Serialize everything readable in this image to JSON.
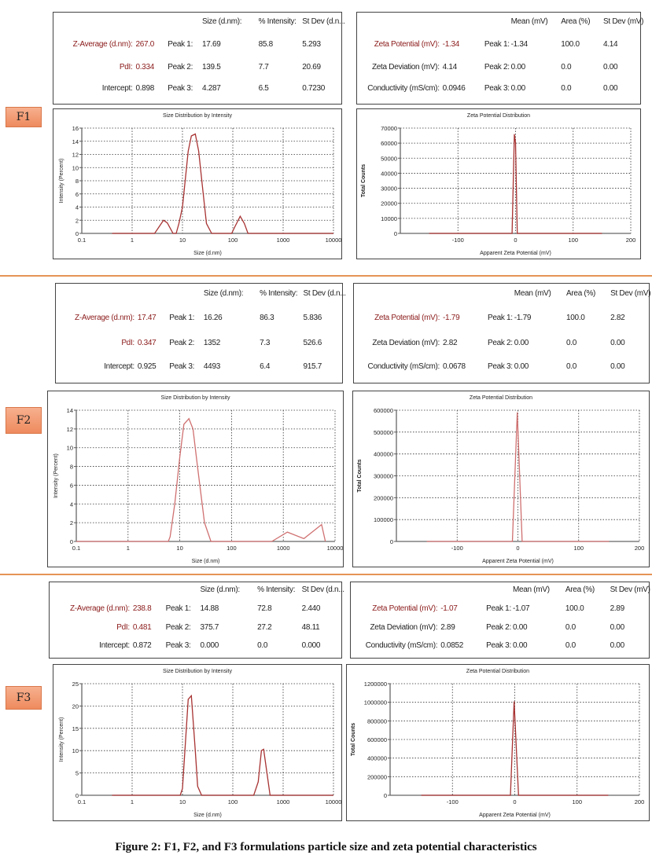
{
  "caption": {
    "figure": "Figure 2",
    "text": ": F1, F2, and F3 formulations particle size and zeta potential characteristics"
  },
  "formulations": [
    {
      "label": "F1",
      "size_table": {
        "headers": [
          "Size (d.nm):",
          "% Intensity:",
          "St Dev (d.n..."
        ],
        "rows": [
          {
            "label": "Z-Average (d.nm):",
            "value": "267.0",
            "peak": "Peak 1:",
            "cols": [
              "17.69",
              "85.8",
              "5.293"
            ]
          },
          {
            "label": "PdI:",
            "value": "0.334",
            "peak": "Peak 2:",
            "cols": [
              "139.5",
              "7.7",
              "20.69"
            ]
          },
          {
            "label": "Intercept:",
            "value": "0.898",
            "peak": "Peak 3:",
            "cols": [
              "4.287",
              "6.5",
              "0.7230"
            ]
          }
        ]
      },
      "zeta_table": {
        "headers": [
          "Mean (mV)",
          "Area (%)",
          "St Dev (mV)"
        ],
        "rows": [
          {
            "label": "Zeta Potential (mV):",
            "value": "-1.34",
            "peak": "Peak 1:",
            "cols": [
              "-1.34",
              "100.0",
              "4.14"
            ]
          },
          {
            "label": "Zeta Deviation (mV):",
            "value": "4.14",
            "peak": "Peak 2:",
            "cols": [
              "0.00",
              "0.0",
              "0.00"
            ]
          },
          {
            "label": "Conductivity (mS/cm):",
            "value": "0.0946",
            "peak": "Peak 3:",
            "cols": [
              "0.00",
              "0.0",
              "0.00"
            ]
          }
        ]
      }
    },
    {
      "label": "F2",
      "size_table": {
        "headers": [
          "Size (d.nm):",
          "% Intensity:",
          "St Dev (d.n..."
        ],
        "rows": [
          {
            "label": "Z-Average (d.nm):",
            "value": "17.47",
            "peak": "Peak 1:",
            "cols": [
              "16.26",
              "86.3",
              "5.836"
            ]
          },
          {
            "label": "PdI:",
            "value": "0.347",
            "peak": "Peak 2:",
            "cols": [
              "1352",
              "7.3",
              "526.6"
            ]
          },
          {
            "label": "Intercept:",
            "value": "0.925",
            "peak": "Peak 3:",
            "cols": [
              "4493",
              "6.4",
              "915.7"
            ]
          }
        ]
      },
      "zeta_table": {
        "headers": [
          "Mean (mV)",
          "Area (%)",
          "St Dev (mV)"
        ],
        "rows": [
          {
            "label": "Zeta Potential (mV):",
            "value": "-1.79",
            "peak": "Peak 1:",
            "cols": [
              "-1.79",
              "100.0",
              "2.82"
            ]
          },
          {
            "label": "Zeta Deviation (mV):",
            "value": "2.82",
            "peak": "Peak 2:",
            "cols": [
              "0.00",
              "0.0",
              "0.00"
            ]
          },
          {
            "label": "Conductivity (mS/cm):",
            "value": "0.0678",
            "peak": "Peak 3:",
            "cols": [
              "0.00",
              "0.0",
              "0.00"
            ]
          }
        ]
      }
    },
    {
      "label": "F3",
      "size_table": {
        "headers": [
          "Size (d.nm):",
          "% Intensity:",
          "St Dev (d.n..."
        ],
        "rows": [
          {
            "label": "Z-Average (d.nm):",
            "value": "238.8",
            "peak": "Peak 1:",
            "cols": [
              "14.88",
              "72.8",
              "2.440"
            ]
          },
          {
            "label": "PdI:",
            "value": "0.481",
            "peak": "Peak 2:",
            "cols": [
              "375.7",
              "27.2",
              "48.11"
            ]
          },
          {
            "label": "Intercept:",
            "value": "0.872",
            "peak": "Peak 3:",
            "cols": [
              "0.000",
              "0.0",
              "0.000"
            ]
          }
        ]
      },
      "zeta_table": {
        "headers": [
          "Mean (mV)",
          "Area (%)",
          "St Dev (mV)"
        ],
        "rows": [
          {
            "label": "Zeta Potential (mV):",
            "value": "-1.07",
            "peak": "Peak 1:",
            "cols": [
              "-1.07",
              "100.0",
              "2.89"
            ]
          },
          {
            "label": "Zeta Deviation (mV):",
            "value": "2.89",
            "peak": "Peak 2:",
            "cols": [
              "0.00",
              "0.0",
              "0.00"
            ]
          },
          {
            "label": "Conductivity (mS/cm):",
            "value": "0.0852",
            "peak": "Peak 3:",
            "cols": [
              "0.00",
              "0.0",
              "0.00"
            ]
          }
        ]
      }
    }
  ],
  "chart_data": [
    {
      "id": "F1-size",
      "type": "line",
      "title": "Size Distribution by Intensity",
      "xlabel": "Size (d.nm)",
      "ylabel": "Intensity (Percent)",
      "xscale": "log",
      "xlim": [
        0.1,
        10000
      ],
      "xticks": [
        0.1,
        1,
        10,
        100,
        1000,
        10000
      ],
      "ylim": [
        0,
        16
      ],
      "yticks": [
        0,
        2,
        4,
        6,
        8,
        10,
        12,
        14,
        16
      ],
      "grid": true,
      "color": "#a83232",
      "x": [
        0.4,
        2.8,
        4.2,
        5,
        6.5,
        7.5,
        8.5,
        10,
        13,
        15,
        18,
        21,
        25,
        30,
        38,
        95,
        110,
        140,
        170,
        200,
        10000
      ],
      "y": [
        0,
        0,
        2,
        1.6,
        0,
        0,
        1.5,
        4,
        12.5,
        14.8,
        15.1,
        12.5,
        7,
        1.5,
        0,
        0,
        1,
        2.6,
        1.5,
        0,
        0
      ]
    },
    {
      "id": "F1-zeta",
      "type": "line",
      "title": "Zeta Potential Distribution",
      "xlabel": "Apparent Zeta Potential (mV)",
      "ylabel": "Total Counts",
      "xscale": "linear",
      "xlim": [
        -200,
        200
      ],
      "xticks": [
        -100,
        0,
        100,
        200
      ],
      "ylim": [
        0,
        70000
      ],
      "yticks": [
        0,
        10000,
        20000,
        30000,
        40000,
        50000,
        60000,
        70000
      ],
      "grid": true,
      "color": "#a83232",
      "x": [
        -150,
        -6,
        -2,
        0,
        3,
        150
      ],
      "y": [
        0,
        0,
        66000,
        60000,
        0,
        0
      ]
    },
    {
      "id": "F2-size",
      "type": "line",
      "title": "Size Distribution by Intensity",
      "xlabel": "Size (d.nm)",
      "ylabel": "Intensity (Percent)",
      "xscale": "log",
      "xlim": [
        0.1,
        10000
      ],
      "xticks": [
        0.1,
        1,
        10,
        100,
        1000,
        10000
      ],
      "ylim": [
        0,
        14
      ],
      "yticks": [
        0,
        2,
        4,
        6,
        8,
        10,
        12,
        14
      ],
      "grid": true,
      "color": "#d07070",
      "x": [
        0.1,
        6,
        6.5,
        8,
        10,
        12,
        15,
        18,
        22,
        30,
        40,
        600,
        1200,
        2500,
        5500,
        6500
      ],
      "y": [
        0,
        0,
        0.5,
        4,
        9,
        12.5,
        13.1,
        12,
        8,
        2,
        0,
        0,
        1,
        0.3,
        1.8,
        0
      ]
    },
    {
      "id": "F2-zeta",
      "type": "line",
      "title": "Zeta Potential Distribution",
      "xlabel": "Apparent Zeta Potential (mV)",
      "ylabel": "Total Counts",
      "xscale": "linear",
      "xlim": [
        -200,
        200
      ],
      "xticks": [
        -100,
        0,
        100,
        200
      ],
      "ylim": [
        0,
        600000
      ],
      "yticks": [
        0,
        100000,
        200000,
        300000,
        400000,
        500000,
        600000
      ],
      "grid": true,
      "color": "#d07070",
      "x": [
        -150,
        -9,
        -1,
        7,
        150
      ],
      "y": [
        0,
        0,
        590000,
        0,
        0
      ]
    },
    {
      "id": "F3-size",
      "type": "line",
      "title": "Size Distribution by Intensity",
      "xlabel": "Size (d.nm)",
      "ylabel": "Intensity (Percent)",
      "xscale": "log",
      "xlim": [
        0.1,
        10000
      ],
      "xticks": [
        0.1,
        1,
        10,
        100,
        1000,
        10000
      ],
      "ylim": [
        0,
        25
      ],
      "yticks": [
        0,
        5,
        10,
        15,
        20,
        25
      ],
      "grid": true,
      "color": "#a83232",
      "x": [
        0.4,
        9,
        10,
        13,
        15,
        18,
        20,
        24,
        260,
        320,
        370,
        410,
        550,
        10000
      ],
      "y": [
        0,
        0,
        1.5,
        21.5,
        22.3,
        10,
        2,
        0,
        0,
        3,
        10,
        10.3,
        0,
        0
      ]
    },
    {
      "id": "F3-zeta",
      "type": "line",
      "title": "Zeta Potential Distribution",
      "xlabel": "Apparent Zeta Potential (mV)",
      "ylabel": "Total Counts",
      "xscale": "linear",
      "xlim": [
        -200,
        200
      ],
      "xticks": [
        -100,
        0,
        100,
        200
      ],
      "ylim": [
        0,
        1200000
      ],
      "yticks": [
        0,
        200000,
        400000,
        600000,
        800000,
        1000000,
        1200000
      ],
      "grid": true,
      "color": "#a83232",
      "x": [
        -150,
        -7,
        -1,
        6,
        150
      ],
      "y": [
        0,
        0,
        1010000,
        0,
        0
      ]
    }
  ]
}
